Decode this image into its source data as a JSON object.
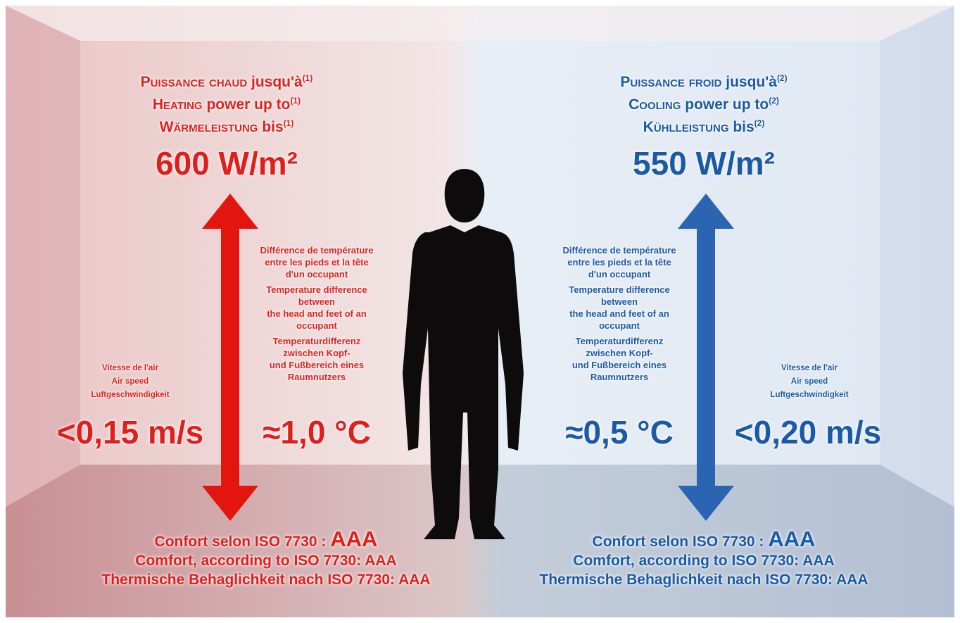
{
  "heating": {
    "heading": [
      {
        "caps": "Puissance chaud",
        "text": "jusqu'à",
        "note": "(1)"
      },
      {
        "caps": "Heating",
        "text": "power up to",
        "note": "(1)"
      },
      {
        "caps": "Wärmeleistung",
        "text": "bis",
        "note": "(1)"
      }
    ],
    "power": "600 W/m²",
    "gradient_label": [
      "Différence de température",
      "entre les pieds et la tête",
      "d'un occupant",
      "Temperature difference",
      "between",
      "the head and feet of an",
      "occupant",
      "Temperaturdifferenz",
      "zwischen Kopf-",
      "und Fußbereich eines",
      "Raumnutzers"
    ],
    "gradient_value": "≈1,0 °C",
    "air_label": [
      "Vitesse de l'air",
      "Air speed",
      "Luftgeschwindigkeit"
    ],
    "air_value": "<0,15 m/s",
    "comfort": {
      "text": "Confort selon ISO 7730 :",
      "rating": "AAA",
      "lines": [
        "Comfort, according to ISO 7730: AAA",
        "Thermische Behaglichkeit nach ISO 7730: AAA"
      ]
    }
  },
  "cooling": {
    "heading": [
      {
        "caps": "Puissance froid",
        "text": "jusqu'à",
        "note": "(2)"
      },
      {
        "caps": "Cooling",
        "text": "power up to",
        "note": "(2)"
      },
      {
        "caps": "Kühlleistung",
        "text": "bis",
        "note": "(2)"
      }
    ],
    "power": "550 W/m²",
    "gradient_label": [
      "Différence de température",
      "entre les pieds et la tête",
      "d'un occupant",
      "Temperature difference",
      "between",
      "the head and feet of an",
      "occupant",
      "Temperaturdifferenz",
      "zwischen Kopf-",
      "und Fußbereich eines",
      "Raumnutzers"
    ],
    "gradient_value": "≈0,5 °C",
    "air_label": [
      "Vitesse de l'air",
      "Air speed",
      "Luftgeschwindigkeit"
    ],
    "air_value": "<0,20 m/s",
    "comfort": {
      "text": "Confort selon ISO 7730 :",
      "rating": "AAA",
      "lines": [
        "Comfort, according to ISO 7730: AAA",
        "Thermische Behaglichkeit nach ISO 7730: AAA"
      ]
    }
  }
}
